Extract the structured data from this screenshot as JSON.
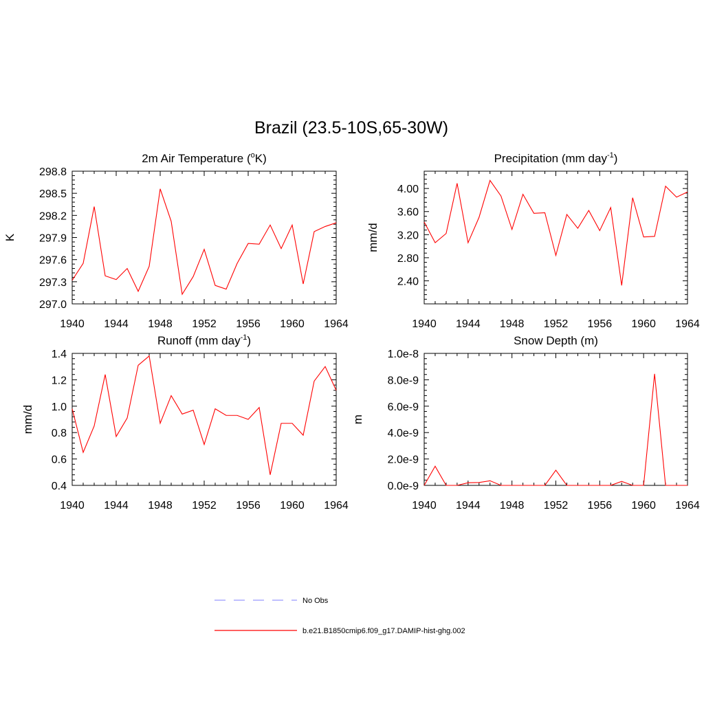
{
  "title": "Brazil (23.5-10S,65-30W)",
  "colors": {
    "model": "#ff0000",
    "obs": "#9999ff",
    "axis": "#000000"
  },
  "legend": [
    {
      "label": "No Obs",
      "style": "dashed",
      "color": "#9999ff"
    },
    {
      "label": "b.e21.B1850cmip6.f09_g17.DAMIP-hist-ghg.002",
      "style": "solid",
      "color": "#ff0000"
    }
  ],
  "chart_data": [
    {
      "type": "line",
      "title": "2m Air Temperature",
      "title_unit": "K",
      "title_unit_prefix": "o",
      "ylabel": "K",
      "xlim": [
        1940,
        1964
      ],
      "ylim": [
        297.0,
        298.8
      ],
      "xticks": [
        1940,
        1944,
        1948,
        1952,
        1956,
        1960,
        1964
      ],
      "yticks": [
        297.0,
        297.3,
        297.6,
        297.9,
        298.2,
        298.5,
        298.8
      ],
      "ytick_labels": [
        "297.0",
        "297.3",
        "297.6",
        "297.9",
        "298.2",
        "298.5",
        "298.8"
      ],
      "series": [
        {
          "x": [
            1940,
            1941,
            1942,
            1943,
            1944,
            1945,
            1946,
            1947,
            1948,
            1949,
            1950,
            1951,
            1952,
            1953,
            1954,
            1955,
            1956,
            1957,
            1958,
            1959,
            1960,
            1961,
            1962,
            1963,
            1964
          ],
          "y": [
            297.32,
            297.55,
            298.32,
            297.38,
            297.33,
            297.48,
            297.17,
            297.51,
            298.56,
            298.12,
            297.13,
            297.37,
            297.74,
            297.25,
            297.2,
            297.55,
            297.82,
            297.81,
            298.07,
            297.75,
            298.07,
            297.27,
            297.98,
            298.05,
            298.1
          ]
        }
      ]
    },
    {
      "type": "line",
      "title": "Precipitation (mm day",
      "title_sup": "-1",
      "title_end": ")",
      "ylabel": "mm/d",
      "xlim": [
        1940,
        1964
      ],
      "ylim": [
        2.0,
        4.3
      ],
      "xticks": [
        1940,
        1944,
        1948,
        1952,
        1956,
        1960,
        1964
      ],
      "yticks": [
        2.4,
        2.8,
        3.2,
        3.6,
        4.0
      ],
      "ytick_labels": [
        "2.40",
        "2.80",
        "3.20",
        "3.60",
        "4.00"
      ],
      "series": [
        {
          "x": [
            1940,
            1941,
            1942,
            1943,
            1944,
            1945,
            1946,
            1947,
            1948,
            1949,
            1950,
            1951,
            1952,
            1953,
            1954,
            1955,
            1956,
            1957,
            1958,
            1959,
            1960,
            1961,
            1962,
            1963,
            1964
          ],
          "y": [
            3.42,
            3.06,
            3.22,
            4.09,
            3.06,
            3.5,
            4.14,
            3.87,
            3.29,
            3.9,
            3.57,
            3.58,
            2.84,
            3.55,
            3.31,
            3.62,
            3.27,
            3.67,
            2.32,
            3.84,
            3.16,
            3.17,
            4.04,
            3.85,
            3.94
          ]
        }
      ]
    },
    {
      "type": "line",
      "title": "Runoff (mm day",
      "title_sup": "-1",
      "title_end": ")",
      "ylabel": "mm/d",
      "xlim": [
        1940,
        1964
      ],
      "ylim": [
        0.4,
        1.4
      ],
      "xticks": [
        1940,
        1944,
        1948,
        1952,
        1956,
        1960,
        1964
      ],
      "yticks": [
        0.4,
        0.6,
        0.8,
        1.0,
        1.2,
        1.4
      ],
      "ytick_labels": [
        "0.4",
        "0.6",
        "0.8",
        "1.0",
        "1.2",
        "1.4"
      ],
      "series": [
        {
          "x": [
            1940,
            1941,
            1942,
            1943,
            1944,
            1945,
            1946,
            1947,
            1948,
            1949,
            1950,
            1951,
            1952,
            1953,
            1954,
            1955,
            1956,
            1957,
            1958,
            1959,
            1960,
            1961,
            1962,
            1963,
            1964
          ],
          "y": [
            0.98,
            0.65,
            0.85,
            1.24,
            0.77,
            0.91,
            1.31,
            1.38,
            0.87,
            1.08,
            0.94,
            0.97,
            0.71,
            0.98,
            0.93,
            0.93,
            0.9,
            0.99,
            0.48,
            0.87,
            0.87,
            0.78,
            1.19,
            1.3,
            1.12
          ]
        }
      ]
    },
    {
      "type": "line",
      "title": "Snow Depth (m)",
      "ylabel": "m",
      "xlim": [
        1940,
        1964
      ],
      "ylim": [
        0.0,
        1e-08
      ],
      "xticks": [
        1940,
        1944,
        1948,
        1952,
        1956,
        1960,
        1964
      ],
      "yticks": [
        0.0,
        2e-09,
        4e-09,
        6e-09,
        8e-09,
        1e-08
      ],
      "ytick_labels": [
        "0.0e-9",
        "2.0e-9",
        "4.0e-9",
        "6.0e-9",
        "8.0e-9",
        "1.0e-8"
      ],
      "series": [
        {
          "x": [
            1940,
            1941,
            1942,
            1943,
            1944,
            1945,
            1946,
            1947,
            1948,
            1949,
            1950,
            1951,
            1952,
            1953,
            1954,
            1955,
            1956,
            1957,
            1958,
            1959,
            1960,
            1961,
            1962,
            1963,
            1964
          ],
          "y": [
            0.0,
            1.45e-09,
            0.0,
            0.0,
            2e-10,
            2.2e-10,
            3.5e-10,
            0.0,
            0.0,
            0.0,
            0.0,
            0.0,
            1.15e-09,
            0.0,
            0.0,
            0.0,
            0.0,
            0.0,
            3e-10,
            0.0,
            0.0,
            8.45e-09,
            0.0,
            0.0,
            0.0
          ]
        }
      ]
    }
  ]
}
